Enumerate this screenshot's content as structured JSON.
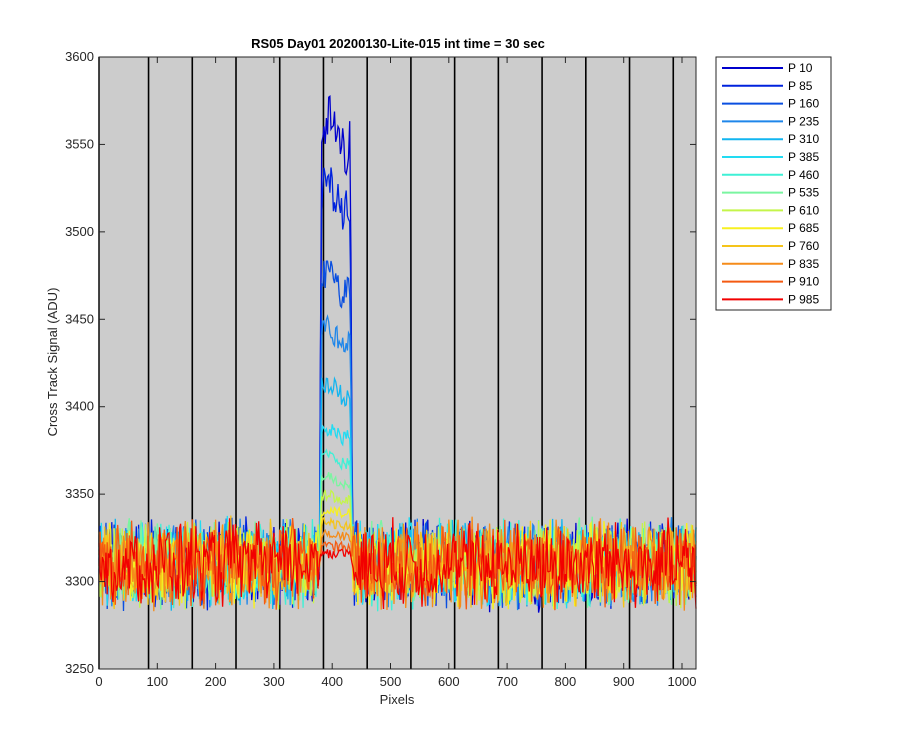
{
  "chart_data": {
    "type": "line",
    "title": "RS05 Day01 20200130-Lite-015 int time = 30 sec",
    "xlabel": "Pixels",
    "ylabel": "Cross Track Signal (ADU)",
    "xlim": [
      0,
      1024
    ],
    "ylim": [
      3250,
      3600
    ],
    "xticks": [
      0,
      100,
      200,
      300,
      400,
      500,
      600,
      700,
      800,
      900,
      1000
    ],
    "yticks": [
      3250,
      3300,
      3350,
      3400,
      3450,
      3500,
      3550,
      3600
    ],
    "background": "#cccccc",
    "grid": false,
    "vertical_lines_x": [
      0,
      85,
      160,
      235,
      310,
      385,
      460,
      535,
      610,
      685,
      760,
      835,
      910,
      985
    ],
    "legend_position": "outside-right",
    "baseline_level": 3310,
    "noise_range": [
      3275,
      3345
    ],
    "peak_region_x": [
      378,
      435
    ],
    "series": [
      {
        "name": "P 10",
        "color": "#0000cc",
        "peak_level": 3555
      },
      {
        "name": "P 85",
        "color": "#0022dd",
        "peak_level": 3520
      },
      {
        "name": "P 160",
        "color": "#0a4fe0",
        "peak_level": 3470
      },
      {
        "name": "P 235",
        "color": "#1f86ea",
        "peak_level": 3440
      },
      {
        "name": "P 310",
        "color": "#12b5f0",
        "peak_level": 3410
      },
      {
        "name": "P 385",
        "color": "#22dbf2",
        "peak_level": 3385
      },
      {
        "name": "P 460",
        "color": "#3ff0d6",
        "peak_level": 3370
      },
      {
        "name": "P 535",
        "color": "#7af5a0",
        "peak_level": 3358
      },
      {
        "name": "P 610",
        "color": "#c4f54a",
        "peak_level": 3348
      },
      {
        "name": "P 685",
        "color": "#f7f020",
        "peak_level": 3340
      },
      {
        "name": "P 760",
        "color": "#f5c41a",
        "peak_level": 3333
      },
      {
        "name": "P 835",
        "color": "#f58c1a",
        "peak_level": 3326
      },
      {
        "name": "P 910",
        "color": "#f45a12",
        "peak_level": 3320
      },
      {
        "name": "P 985",
        "color": "#f20000",
        "peak_level": 3316
      }
    ]
  }
}
